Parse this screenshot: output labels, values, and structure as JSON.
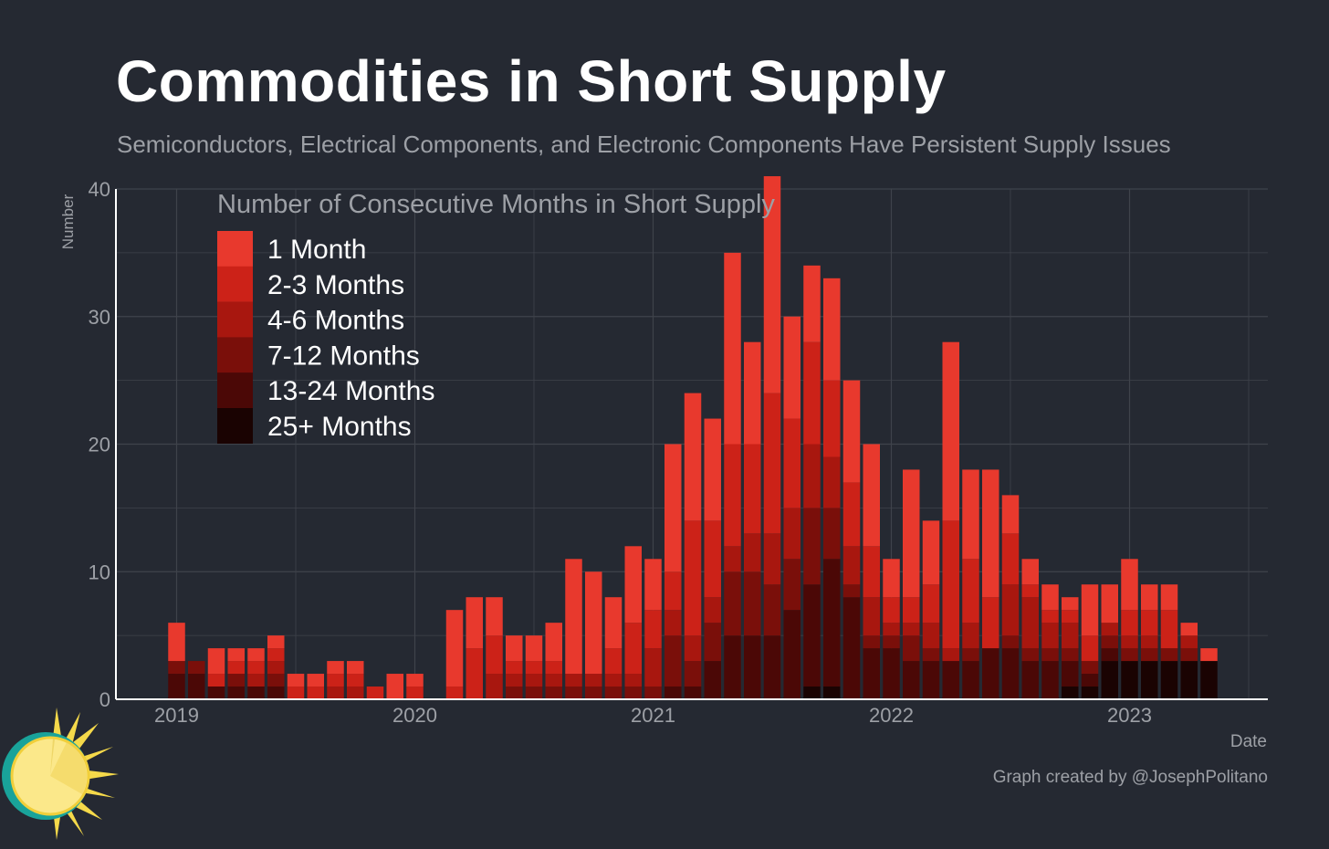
{
  "title": "Commodities in Short Supply",
  "subtitle": "Semiconductors, Electrical Components, and Electronic Components Have Persistent Supply Issues",
  "credit": "Graph created by @JosephPolitano",
  "colors": {
    "background": "#252932",
    "grid": "#3f434b",
    "axis": "#ffffff",
    "tick_text": "#9da0a6",
    "series": [
      "#e8392d",
      "#cc2218",
      "#a8170f",
      "#7a0f0a",
      "#4b0806",
      "#1a0302"
    ]
  },
  "chart_data": {
    "type": "bar",
    "stacked": true,
    "xlabel": "Date",
    "ylabel": "Number",
    "ylim": [
      0,
      40
    ],
    "yticks": [
      0,
      10,
      20,
      30,
      40
    ],
    "xticks": [
      "2019",
      "2020",
      "2021",
      "2022",
      "2023"
    ],
    "grid": true,
    "legend": {
      "title": "Number of Consecutive Months in Short Supply",
      "position": "top-left"
    },
    "categories": [
      "2019-01",
      "2019-02",
      "2019-03",
      "2019-04",
      "2019-05",
      "2019-06",
      "2019-07",
      "2019-08",
      "2019-09",
      "2019-10",
      "2019-11",
      "2019-12",
      "2020-01",
      "2020-02",
      "2020-03",
      "2020-04",
      "2020-05",
      "2020-06",
      "2020-07",
      "2020-08",
      "2020-09",
      "2020-10",
      "2020-11",
      "2020-12",
      "2021-01",
      "2021-02",
      "2021-03",
      "2021-04",
      "2021-05",
      "2021-06",
      "2021-07",
      "2021-08",
      "2021-09",
      "2021-10",
      "2021-11",
      "2021-12",
      "2022-01",
      "2022-02",
      "2022-03",
      "2022-04",
      "2022-05",
      "2022-06",
      "2022-07",
      "2022-08",
      "2022-09",
      "2022-10",
      "2022-11",
      "2022-12",
      "2023-01",
      "2023-02",
      "2023-03",
      "2023-04",
      "2023-05"
    ],
    "series": [
      {
        "name": "1 Month",
        "values": [
          3,
          0,
          2,
          1,
          1,
          1,
          1,
          1,
          1,
          1,
          0,
          2,
          1,
          0,
          6,
          4,
          3,
          2,
          2,
          3,
          9,
          8,
          4,
          6,
          4,
          10,
          10,
          8,
          15,
          8,
          17,
          8,
          6,
          8,
          8,
          8,
          3,
          10,
          5,
          14,
          7,
          10,
          3,
          2,
          2,
          1,
          4,
          3,
          4,
          2,
          2,
          1,
          1
        ]
      },
      {
        "name": "2-3 Months",
        "values": [
          0,
          0,
          1,
          1,
          1,
          1,
          1,
          1,
          1,
          1,
          1,
          0,
          1,
          0,
          1,
          4,
          3,
          1,
          1,
          1,
          0,
          0,
          2,
          4,
          3,
          3,
          9,
          6,
          8,
          7,
          11,
          7,
          8,
          6,
          5,
          4,
          2,
          2,
          3,
          10,
          5,
          4,
          4,
          1,
          1,
          1,
          2,
          0,
          2,
          2,
          3,
          0,
          0
        ]
      },
      {
        "name": "4-6 Months",
        "values": [
          0,
          0,
          0,
          0,
          1,
          1,
          0,
          0,
          1,
          1,
          0,
          0,
          0,
          0,
          0,
          0,
          2,
          1,
          1,
          1,
          1,
          1,
          1,
          1,
          3,
          2,
          2,
          2,
          2,
          3,
          4,
          4,
          5,
          4,
          3,
          3,
          1,
          1,
          2,
          1,
          2,
          0,
          4,
          4,
          2,
          2,
          0,
          1,
          1,
          1,
          0,
          1,
          0
        ]
      },
      {
        "name": "7-12 Months",
        "values": [
          1,
          1,
          0,
          1,
          0,
          1,
          0,
          0,
          0,
          0,
          0,
          0,
          0,
          0,
          0,
          0,
          0,
          1,
          1,
          1,
          1,
          1,
          1,
          1,
          1,
          4,
          2,
          3,
          5,
          5,
          4,
          4,
          6,
          4,
          1,
          1,
          1,
          2,
          1,
          0,
          1,
          0,
          1,
          1,
          1,
          1,
          1,
          1,
          1,
          1,
          1,
          1,
          0
        ]
      },
      {
        "name": "13-24 Months",
        "values": [
          2,
          2,
          1,
          1,
          1,
          1,
          0,
          0,
          0,
          0,
          0,
          0,
          0,
          0,
          0,
          0,
          0,
          0,
          0,
          0,
          0,
          0,
          0,
          0,
          0,
          1,
          1,
          3,
          5,
          5,
          5,
          7,
          8,
          10,
          8,
          4,
          4,
          3,
          3,
          3,
          3,
          4,
          4,
          3,
          3,
          2,
          1,
          1,
          0,
          0,
          0,
          0,
          0
        ]
      },
      {
        "name": "25+ Months",
        "values": [
          0,
          0,
          0,
          0,
          0,
          0,
          0,
          0,
          0,
          0,
          0,
          0,
          0,
          0,
          0,
          0,
          0,
          0,
          0,
          0,
          0,
          0,
          0,
          0,
          0,
          0,
          0,
          0,
          0,
          0,
          0,
          0,
          1,
          1,
          0,
          0,
          0,
          0,
          0,
          0,
          0,
          0,
          0,
          0,
          0,
          1,
          1,
          3,
          3,
          3,
          3,
          3,
          3
        ]
      }
    ]
  }
}
